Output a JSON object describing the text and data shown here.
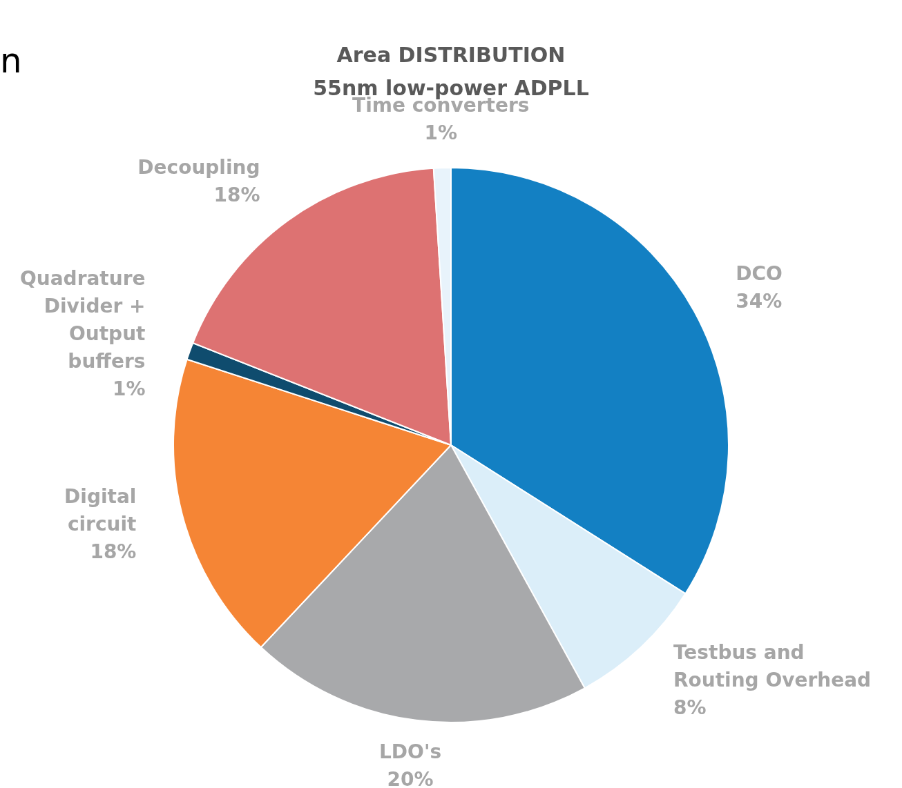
{
  "chart_data": {
    "type": "pie",
    "title": "Area DISTRIBUTION",
    "subtitle": "55nm low-power ADPLL",
    "annotations": [
      "n"
    ],
    "categories": [
      "DCO",
      "Testbus and Routing Overhead",
      "LDO's",
      "Digital circuit",
      "Quadrature Divider + Output buffers",
      "Decoupling",
      "Time converters"
    ],
    "values": [
      34,
      8,
      20,
      18,
      1,
      18,
      1
    ],
    "value_labels": [
      "34%",
      "8%",
      "20%",
      "18%",
      "1%",
      "18%",
      "1%"
    ],
    "colors": [
      "#1380c3",
      "#dbeef9",
      "#a8a9ab",
      "#f58535",
      "#0f4c6e",
      "#dd7272",
      "#e8f3fb"
    ],
    "legend": false
  }
}
